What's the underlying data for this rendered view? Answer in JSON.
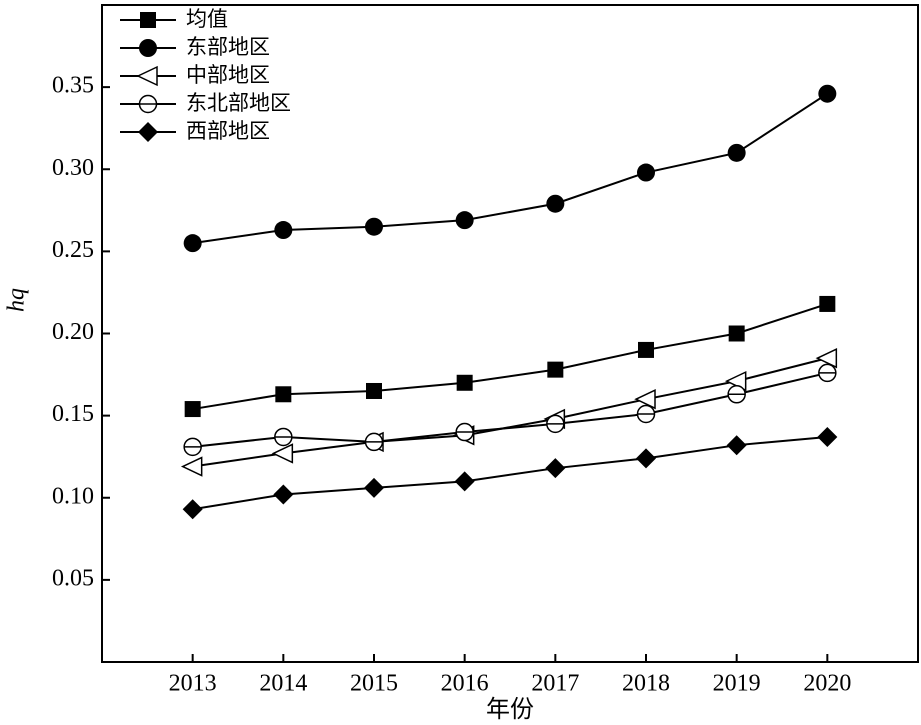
{
  "chart_data": {
    "type": "line",
    "x_label": "年份",
    "y_label": "hq",
    "x": [
      2013,
      2014,
      2015,
      2016,
      2017,
      2018,
      2019,
      2020
    ],
    "xlim": [
      2012,
      2021
    ],
    "xticks": [
      2013,
      2014,
      2015,
      2016,
      2017,
      2018,
      2019,
      2020
    ],
    "ylim": [
      0,
      0.4
    ],
    "yticks": [
      0.05,
      {
        "value": 0.1,
        "label": "0.10"
      },
      0.15,
      {
        "value": 0.2,
        "label": "0.20"
      },
      0.25,
      {
        "value": 0.3,
        "label": "0.30"
      },
      0.35
    ],
    "legend": "upper left",
    "series": [
      {
        "name": "均值",
        "color": "#000000",
        "marker": "square",
        "values": [
          0.154,
          0.163,
          0.165,
          0.17,
          0.178,
          0.19,
          0.2,
          0.218
        ]
      },
      {
        "name": "东部地区",
        "color": "#000000",
        "marker": "circle",
        "values": [
          0.255,
          0.263,
          0.265,
          0.269,
          0.279,
          0.298,
          0.31,
          0.346
        ]
      },
      {
        "name": "中部地区",
        "color": "#000000",
        "marker": "triangle-left-open",
        "values": [
          0.119,
          0.127,
          0.134,
          0.138,
          0.148,
          0.16,
          0.171,
          0.185
        ]
      },
      {
        "name": "东北部地区",
        "color": "#000000",
        "marker": "circle-half",
        "values": [
          0.131,
          0.137,
          0.134,
          0.14,
          0.145,
          0.151,
          0.163,
          0.176
        ]
      },
      {
        "name": "西部地区",
        "color": "#000000",
        "marker": "diamond",
        "values": [
          0.093,
          0.102,
          0.106,
          0.11,
          0.118,
          0.124,
          0.132,
          0.137
        ]
      }
    ]
  }
}
